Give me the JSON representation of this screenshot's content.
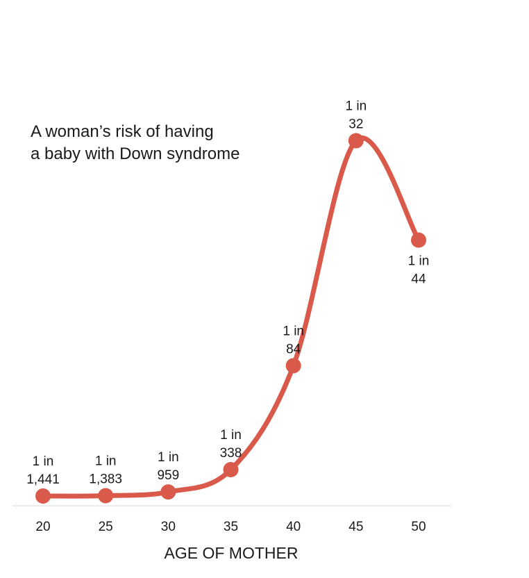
{
  "chart_data": {
    "type": "line",
    "title": [
      "A woman’s risk of having",
      "a baby with Down syndrome"
    ],
    "xlabel": "AGE OF MOTHER",
    "ylabel": "",
    "x": [
      20,
      25,
      30,
      35,
      40,
      45,
      50
    ],
    "tick_labels": [
      "20",
      "25",
      "30",
      "35",
      "40",
      "45",
      "50"
    ],
    "risk_denominator": [
      1441,
      1383,
      959,
      338,
      84,
      32,
      44
    ],
    "values_per_1000": [
      0.69,
      0.72,
      1.04,
      2.96,
      11.9,
      31.25,
      22.7
    ],
    "data_labels": [
      [
        "1 in",
        "1,441"
      ],
      [
        "1 in",
        "1,383"
      ],
      [
        "1 in",
        "959"
      ],
      [
        "1 in",
        "338"
      ],
      [
        "1 in",
        "84"
      ],
      [
        "1 in",
        "32"
      ],
      [
        "1 in",
        "44"
      ]
    ],
    "label_position": [
      "above",
      "above",
      "above",
      "above",
      "above",
      "above",
      "below"
    ],
    "xlim": [
      17.5,
      52
    ],
    "ylim": [
      0,
      32
    ],
    "grid": false,
    "color": "#d9594a"
  }
}
